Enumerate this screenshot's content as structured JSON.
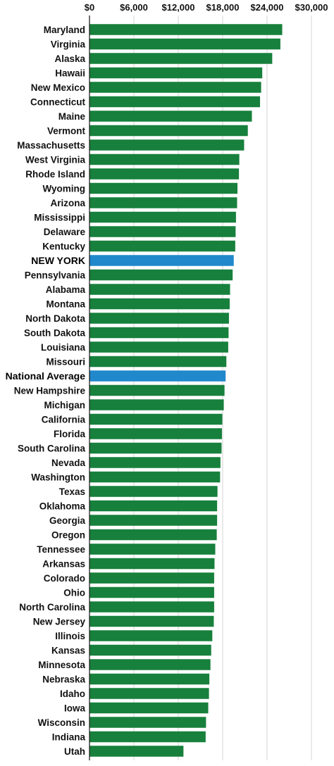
{
  "chart_data": {
    "type": "bar",
    "orientation": "horizontal",
    "title": "",
    "xlabel": "",
    "ylabel": "",
    "xlim": [
      0,
      30000
    ],
    "grid": true,
    "x_ticks": [
      {
        "value": 0,
        "label": "$0"
      },
      {
        "value": 6000,
        "label": "$6,000"
      },
      {
        "value": 12000,
        "label": "$12,000"
      },
      {
        "value": 18000,
        "label": "$18,000"
      },
      {
        "value": 24000,
        "label": "$24,000"
      },
      {
        "value": 30000,
        "label": "$30,000"
      }
    ],
    "colors": {
      "default": "#17803c",
      "highlight": "#2188cc"
    },
    "highlight_categories": [
      "NEW YORK",
      "National Average"
    ],
    "categories": [
      "Maryland",
      "Virginia",
      "Alaska",
      "Hawaii",
      "New Mexico",
      "Connecticut",
      "Maine",
      "Vermont",
      "Massachusetts",
      "West Virginia",
      "Rhode Island",
      "Wyoming",
      "Arizona",
      "Mississippi",
      "Delaware",
      "Kentucky",
      "NEW YORK",
      "Pennsylvania",
      "Alabama",
      "Montana",
      "North Dakota",
      "South Dakota",
      "Louisiana",
      "Missouri",
      "National Average",
      "New Hampshire",
      "Michigan",
      "California",
      "Florida",
      "South Carolina",
      "Nevada",
      "Washington",
      "Texas",
      "Oklahoma",
      "Georgia",
      "Oregon",
      "Tennessee",
      "Arkansas",
      "Colorado",
      "Ohio",
      "North Carolina",
      "New Jersey",
      "Illinois",
      "Kansas",
      "Minnesota",
      "Nebraska",
      "Idaho",
      "Iowa",
      "Wisconsin",
      "Indiana",
      "Utah"
    ],
    "values": [
      26050,
      25800,
      24700,
      23350,
      23200,
      23050,
      21950,
      21400,
      20900,
      20250,
      20200,
      20000,
      19950,
      19800,
      19750,
      19700,
      19500,
      19350,
      19000,
      18950,
      18850,
      18800,
      18750,
      18500,
      18400,
      18250,
      18150,
      17950,
      17900,
      17850,
      17700,
      17650,
      17300,
      17250,
      17250,
      17200,
      17000,
      16900,
      16850,
      16850,
      16850,
      16800,
      16600,
      16450,
      16350,
      16200,
      16150,
      16050,
      15750,
      15700,
      12700
    ]
  }
}
